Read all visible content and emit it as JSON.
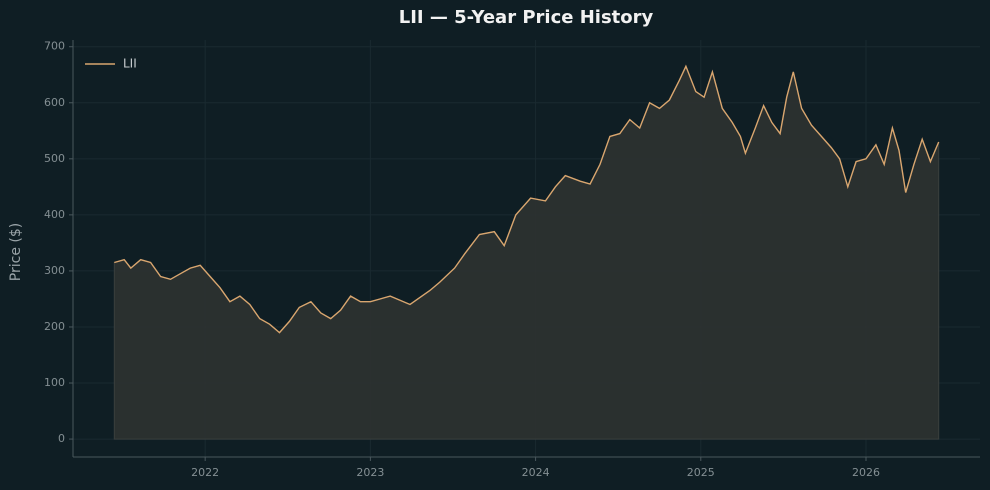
{
  "chart_data": {
    "type": "area",
    "title": "LII — 5-Year Price History",
    "y_label": "Price ($)",
    "x": [
      2021.45,
      2021.51,
      2021.55,
      2021.61,
      2021.67,
      2021.73,
      2021.79,
      2021.85,
      2021.91,
      2021.97,
      2022.03,
      2022.09,
      2022.15,
      2022.21,
      2022.27,
      2022.33,
      2022.39,
      2022.45,
      2022.51,
      2022.57,
      2022.64,
      2022.7,
      2022.76,
      2022.82,
      2022.88,
      2022.94,
      2023.0,
      2023.12,
      2023.24,
      2023.36,
      2023.42,
      2023.51,
      2023.57,
      2023.66,
      2023.75,
      2023.81,
      2023.88,
      2023.97,
      2024.06,
      2024.12,
      2024.18,
      2024.27,
      2024.33,
      2024.39,
      2024.45,
      2024.51,
      2024.57,
      2024.63,
      2024.69,
      2024.75,
      2024.81,
      2024.87,
      2024.91,
      2024.97,
      2025.02,
      2025.07,
      2025.13,
      2025.19,
      2025.24,
      2025.27,
      2025.33,
      2025.38,
      2025.43,
      2025.48,
      2025.52,
      2025.56,
      2025.61,
      2025.67,
      2025.73,
      2025.79,
      2025.84,
      2025.89,
      2025.94,
      2026.0,
      2026.06,
      2026.11,
      2026.16,
      2026.2,
      2026.24,
      2026.29,
      2026.34,
      2026.39,
      2026.44
    ],
    "series": [
      {
        "name": "LII",
        "color": "#d9a66f",
        "fill": "#2e3231",
        "values": [
          315,
          320,
          305,
          320,
          315,
          290,
          285,
          295,
          305,
          310,
          290,
          270,
          245,
          255,
          240,
          215,
          205,
          190,
          210,
          235,
          245,
          225,
          215,
          230,
          255,
          245,
          245,
          255,
          240,
          265,
          280,
          305,
          330,
          365,
          370,
          345,
          400,
          430,
          425,
          450,
          470,
          460,
          455,
          490,
          540,
          545,
          570,
          555,
          600,
          590,
          605,
          640,
          665,
          620,
          610,
          655,
          590,
          565,
          540,
          510,
          555,
          595,
          565,
          545,
          610,
          655,
          590,
          560,
          540,
          520,
          500,
          450,
          495,
          500,
          525,
          490,
          555,
          515,
          440,
          490,
          535,
          495,
          530
        ]
      }
    ],
    "xlim": [
      2021.2,
      2026.69
    ],
    "ylim": [
      -32,
      712
    ],
    "xticks": [
      2022,
      2023,
      2024,
      2025,
      2026
    ],
    "yticks": [
      0,
      100,
      200,
      300,
      400,
      500,
      600,
      700
    ],
    "grid": true,
    "legend": "upper left"
  }
}
